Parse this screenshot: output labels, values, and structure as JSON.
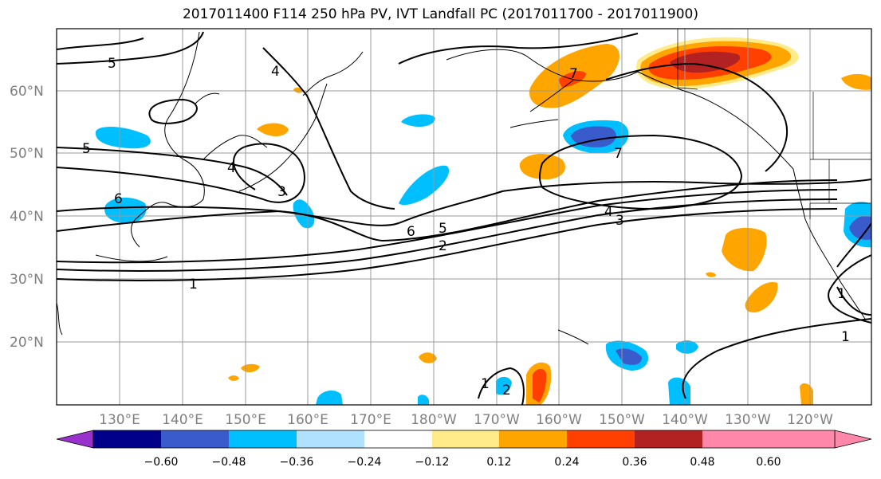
{
  "title": "2017011400 F114 250 hPa PV, IVT Landfall PC (2017011700 - 2017011900)",
  "lat_labels": [
    "60°N",
    "50°N",
    "40°N",
    "30°N",
    "20°N"
  ],
  "lon_labels": [
    "130°E",
    "140°E",
    "150°E",
    "160°E",
    "170°E",
    "180°W",
    "170°W",
    "160°W",
    "150°W",
    "140°W",
    "130°W",
    "120°W"
  ],
  "contour_labels": [
    "5",
    "4",
    "7",
    "5",
    "4",
    "3",
    "6",
    "4",
    "3",
    "6",
    "5",
    "2",
    "1",
    "7",
    "1",
    "1",
    "2",
    "1"
  ],
  "colorbar": {
    "colors": [
      "#9932cc",
      "#00008b",
      "#3a5bcb",
      "#00bfff",
      "#b0e2ff",
      "#ffffff",
      "#ffeb8a",
      "#ffa500",
      "#ff4000",
      "#b22222",
      "#ff88aa"
    ],
    "tick_labels": [
      "−0.60",
      "−0.48",
      "−0.36",
      "−0.24",
      "−0.12",
      "0.12",
      "0.24",
      "0.36",
      "0.48",
      "0.60"
    ]
  }
}
